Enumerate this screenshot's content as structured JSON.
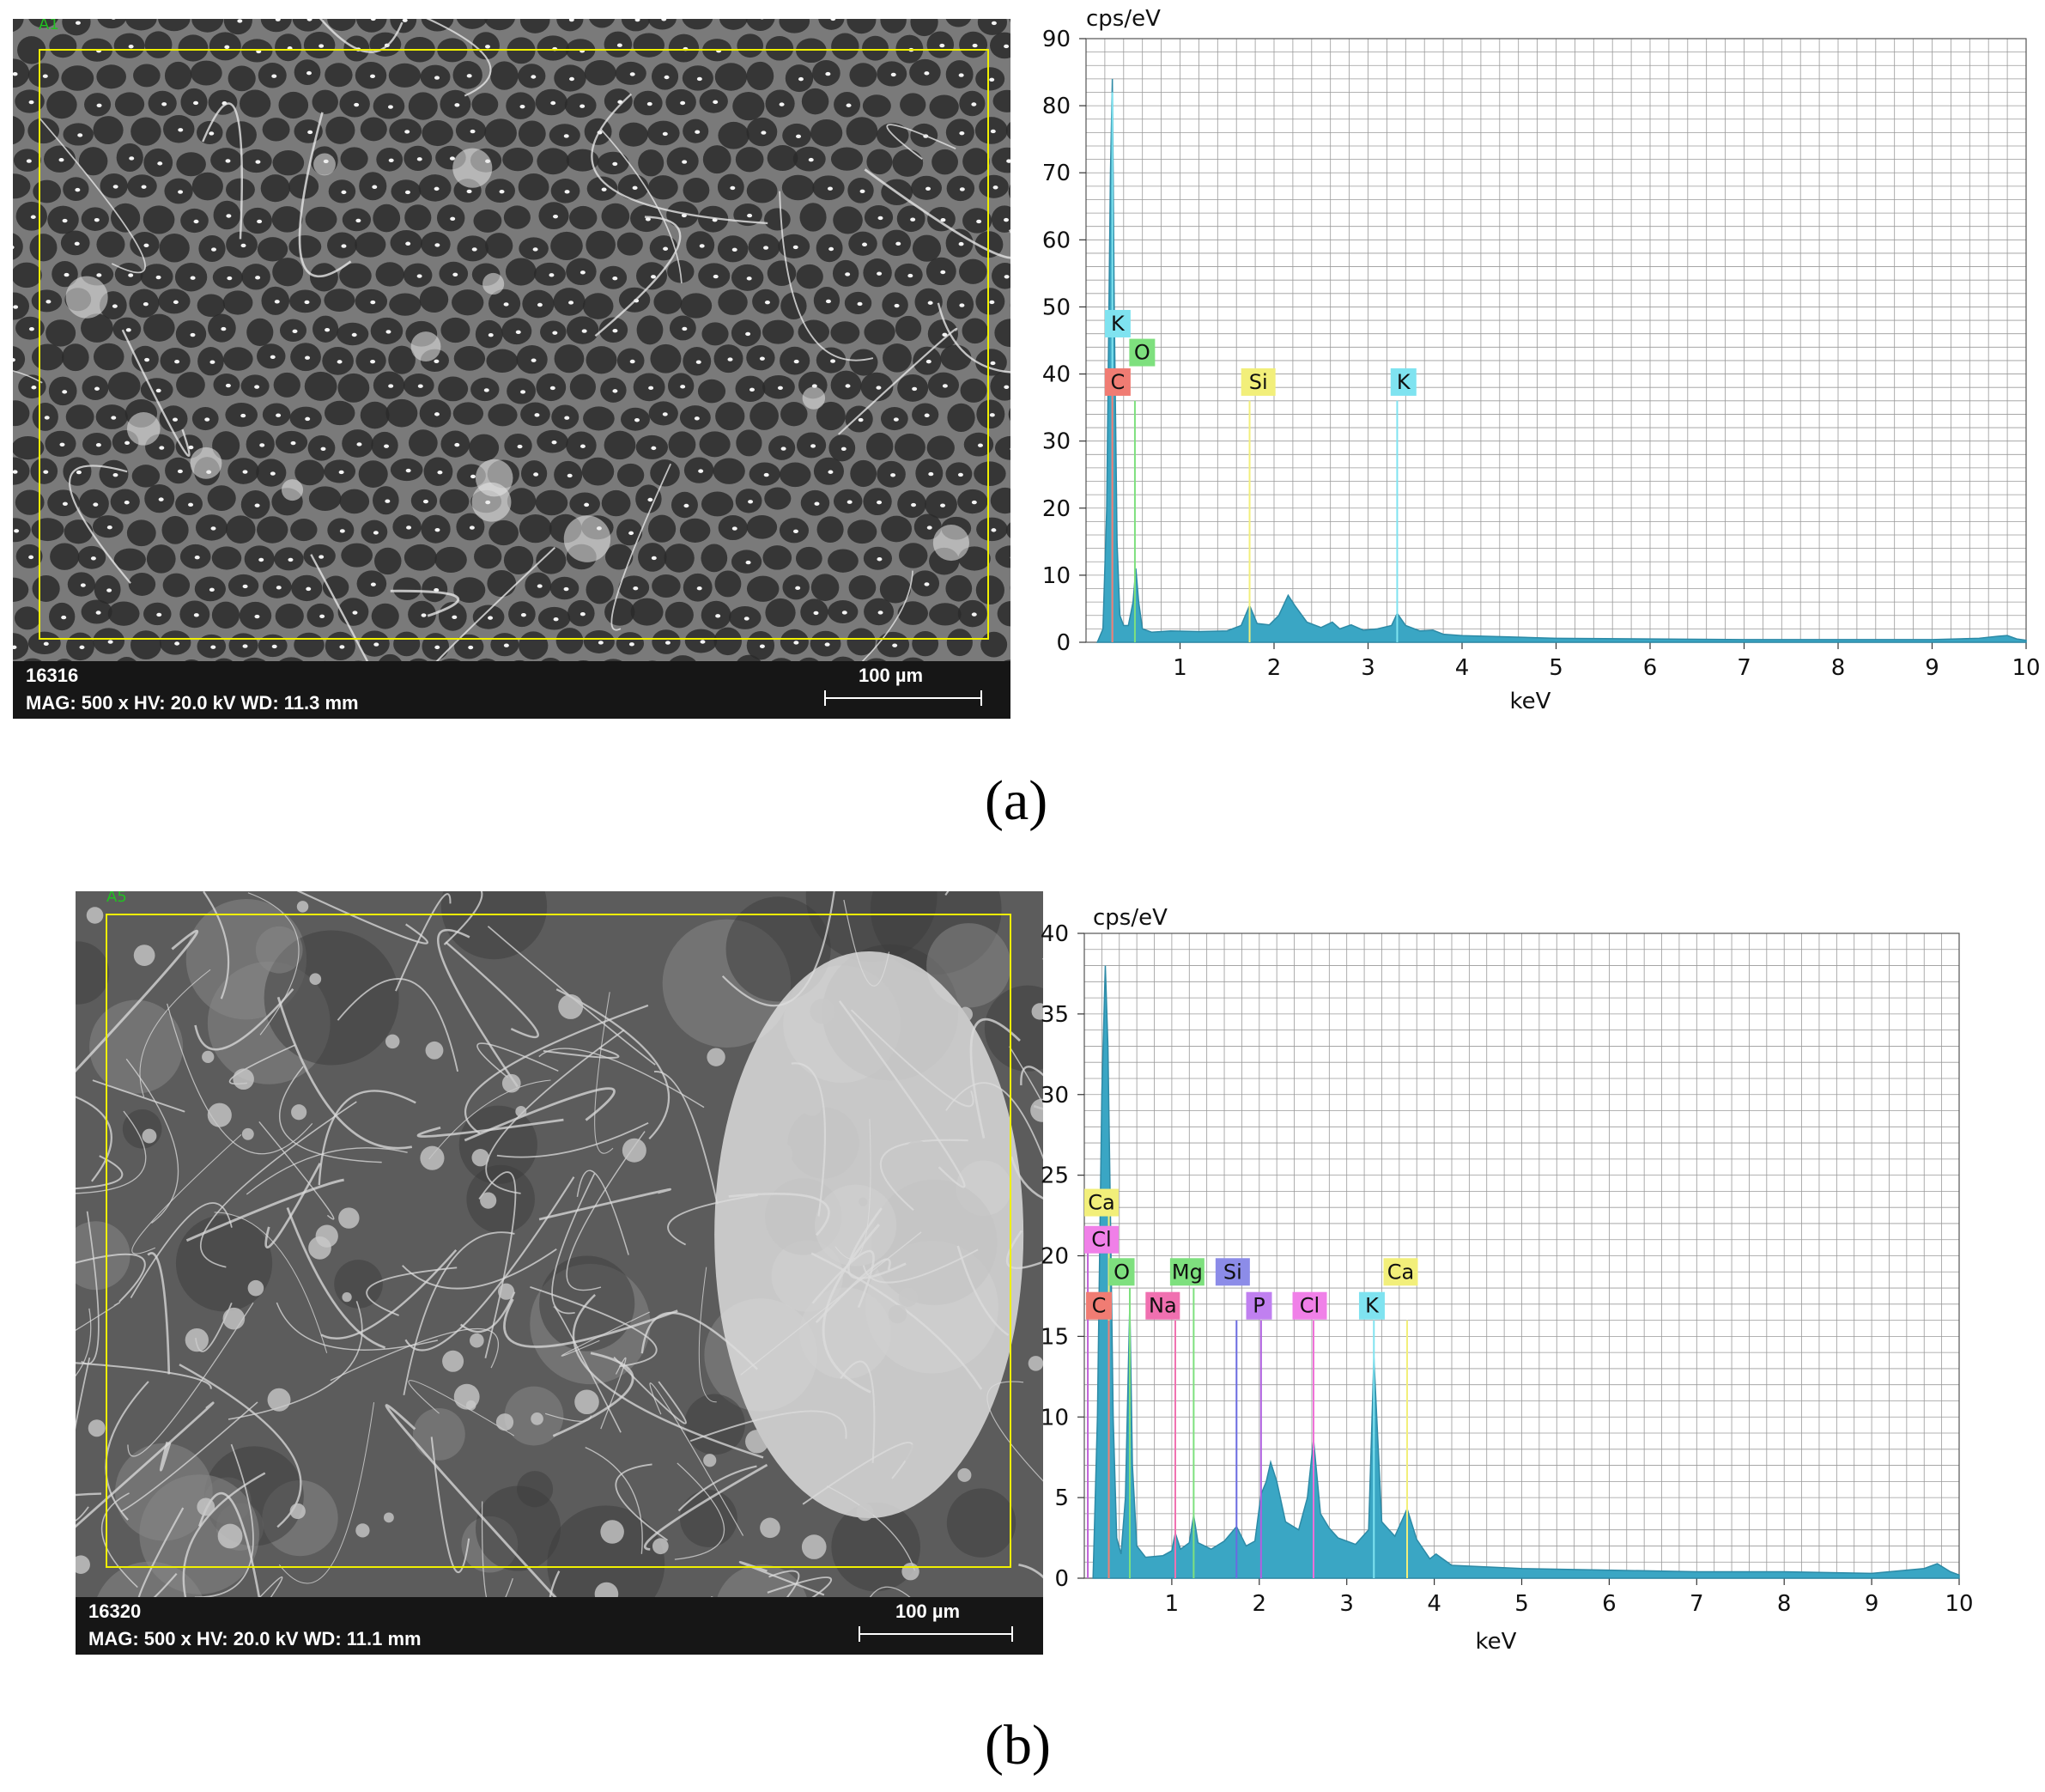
{
  "panels": [
    {
      "caption": "(a)",
      "sem": {
        "roi_label": "A1",
        "image_id": "16316",
        "params": "MAG: 500 x HV: 20.0 kV WD: 11.3 mm",
        "scale_label": "100 µm",
        "texture": "honeycomb"
      }
    },
    {
      "caption": "(b)",
      "sem": {
        "roi_label": "A5",
        "image_id": "16320",
        "params": "MAG: 500 x HV: 20.0 kV WD: 11.1 mm",
        "scale_label": "100 µm",
        "texture": "fibrous"
      }
    }
  ],
  "chart_data": [
    {
      "type": "area",
      "title": "",
      "xlabel": "keV",
      "ylabel": "cps/eV",
      "xlim": [
        0,
        10
      ],
      "ylim": [
        0,
        90
      ],
      "xticks": [
        1,
        2,
        3,
        4,
        5,
        6,
        7,
        8,
        9,
        10
      ],
      "yticks": [
        0,
        10,
        20,
        30,
        40,
        50,
        60,
        70,
        80,
        90
      ],
      "y_minor_step": 2,
      "x_minor_step": 0.2,
      "grid": true,
      "fill_color": "#3aa6c4",
      "series": [
        {
          "x": [
            0.12,
            0.18,
            0.22,
            0.26,
            0.28,
            0.3,
            0.33,
            0.36,
            0.4,
            0.45,
            0.5,
            0.53,
            0.56,
            0.6,
            0.7,
            0.9,
            1.2,
            1.5,
            1.65,
            1.74,
            1.82,
            1.95,
            2.05,
            2.15,
            2.22,
            2.35,
            2.5,
            2.62,
            2.7,
            2.82,
            2.95,
            3.1,
            3.25,
            3.31,
            3.4,
            3.55,
            3.69,
            3.8,
            4.0,
            4.5,
            5.0,
            6.0,
            7.0,
            8.0,
            9.0,
            9.5,
            9.7,
            9.8,
            9.9,
            10.0
          ],
          "y": [
            0,
            2,
            20,
            70,
            84,
            50,
            15,
            4,
            2.5,
            2.5,
            6,
            11,
            6,
            2,
            1.5,
            1.7,
            1.6,
            1.7,
            2.5,
            5.5,
            2.8,
            2.6,
            4,
            7,
            5.5,
            3,
            2.2,
            3,
            2,
            2.6,
            1.8,
            2,
            2.5,
            4.3,
            2.5,
            1.7,
            1.8,
            1.2,
            1,
            0.8,
            0.6,
            0.5,
            0.4,
            0.4,
            0.4,
            0.6,
            0.9,
            1,
            0.5,
            0.3
          ]
        }
      ],
      "element_lines": [
        {
          "x": 0.28,
          "y_end": 82,
          "color": "#7fe3f0"
        },
        {
          "x": 0.28,
          "y_end": 38,
          "color": "#f07c73"
        },
        {
          "x": 0.52,
          "y_end": 36,
          "color": "#7ee07e"
        },
        {
          "x": 1.74,
          "y_end": 36,
          "color": "#f2ef7a"
        },
        {
          "x": 3.31,
          "y_end": 36,
          "color": "#7fe3f0"
        }
      ],
      "element_labels": [
        {
          "text": "K",
          "x": 0.2,
          "y": 47.5,
          "color": "#7fe3f0"
        },
        {
          "text": "O",
          "x": 0.46,
          "y": 43.2,
          "color": "#7ee07e"
        },
        {
          "text": "C",
          "x": 0.2,
          "y": 38.8,
          "color": "#f07c73"
        },
        {
          "text": "Si",
          "x": 1.65,
          "y": 38.8,
          "color": "#f2ef7a"
        },
        {
          "text": "K",
          "x": 3.24,
          "y": 38.8,
          "color": "#7fe3f0"
        }
      ]
    },
    {
      "type": "area",
      "title": "",
      "xlabel": "keV",
      "ylabel": "cps/eV",
      "xlim": [
        0,
        10
      ],
      "ylim": [
        0,
        40
      ],
      "xticks": [
        1,
        2,
        3,
        4,
        5,
        6,
        7,
        8,
        9,
        10
      ],
      "yticks": [
        0,
        5,
        10,
        15,
        20,
        25,
        30,
        35,
        40
      ],
      "y_minor_step": 1,
      "x_minor_step": 0.2,
      "grid": true,
      "fill_color": "#3aa6c4",
      "series": [
        {
          "x": [
            0.1,
            0.15,
            0.2,
            0.24,
            0.27,
            0.3,
            0.33,
            0.37,
            0.42,
            0.47,
            0.52,
            0.55,
            0.6,
            0.7,
            0.9,
            1.0,
            1.04,
            1.1,
            1.2,
            1.25,
            1.3,
            1.45,
            1.6,
            1.74,
            1.85,
            1.95,
            2.02,
            2.08,
            2.13,
            2.2,
            2.3,
            2.45,
            2.55,
            2.62,
            2.7,
            2.8,
            2.9,
            3.1,
            3.25,
            3.31,
            3.4,
            3.55,
            3.69,
            3.8,
            3.95,
            4.02,
            4.2,
            5.0,
            6.0,
            7.0,
            8.0,
            9.0,
            9.6,
            9.75,
            9.9,
            10.0
          ],
          "y": [
            0,
            10,
            30,
            38,
            33,
            22,
            10,
            2.5,
            1.5,
            5,
            17,
            7,
            2,
            1.3,
            1.4,
            1.7,
            2.8,
            1.8,
            2.2,
            3.9,
            2.2,
            1.8,
            2.3,
            3.2,
            2,
            2.3,
            5.2,
            6,
            7.2,
            6,
            3.5,
            3,
            5,
            8.6,
            4,
            3.1,
            2.5,
            2.1,
            3,
            13.7,
            3.5,
            2.6,
            4.3,
            2.4,
            1.2,
            1.5,
            0.8,
            0.6,
            0.5,
            0.4,
            0.4,
            0.3,
            0.6,
            0.9,
            0.4,
            0.2
          ]
        }
      ],
      "element_lines": [
        {
          "x": 0.28,
          "y_end": 23,
          "color": "#f2ef7a"
        },
        {
          "x": 0.04,
          "y_end": 20.5,
          "color": "#c060d8"
        },
        {
          "x": 0.28,
          "y_end": 16,
          "color": "#f07c73"
        },
        {
          "x": 0.52,
          "y_end": 18,
          "color": "#7ee07e"
        },
        {
          "x": 1.04,
          "y_end": 16,
          "color": "#f070b0"
        },
        {
          "x": 1.25,
          "y_end": 18,
          "color": "#7ee07e"
        },
        {
          "x": 1.74,
          "y_end": 16,
          "color": "#6a6ae0"
        },
        {
          "x": 2.02,
          "y_end": 16,
          "color": "#b060e0"
        },
        {
          "x": 2.62,
          "y_end": 16,
          "color": "#f070d8"
        },
        {
          "x": 3.31,
          "y_end": 16,
          "color": "#7fe3f0"
        },
        {
          "x": 3.69,
          "y_end": 16,
          "color": "#f2ef7a"
        }
      ],
      "element_labels": [
        {
          "text": "Ca",
          "x": 0.0,
          "y": 23.3,
          "color": "#f2ef7a"
        },
        {
          "text": "Cl",
          "x": 0.0,
          "y": 21.0,
          "color": "#f080e8"
        },
        {
          "text": "O",
          "x": 0.28,
          "y": 19.0,
          "color": "#7ee07e"
        },
        {
          "text": "Mg",
          "x": 0.98,
          "y": 19.0,
          "color": "#7ee07e"
        },
        {
          "text": "Si",
          "x": 1.5,
          "y": 19.0,
          "color": "#8c8ce8"
        },
        {
          "text": "C",
          "x": 0.02,
          "y": 16.9,
          "color": "#f07c73"
        },
        {
          "text": "Na",
          "x": 0.7,
          "y": 16.9,
          "color": "#f070b0"
        },
        {
          "text": "P",
          "x": 1.85,
          "y": 16.9,
          "color": "#c080f0"
        },
        {
          "text": "Cl",
          "x": 2.38,
          "y": 16.9,
          "color": "#f080e8"
        },
        {
          "text": "K",
          "x": 3.14,
          "y": 16.9,
          "color": "#7fe3f0"
        },
        {
          "text": "Ca",
          "x": 3.42,
          "y": 19.0,
          "color": "#f2ef7a"
        }
      ]
    }
  ]
}
